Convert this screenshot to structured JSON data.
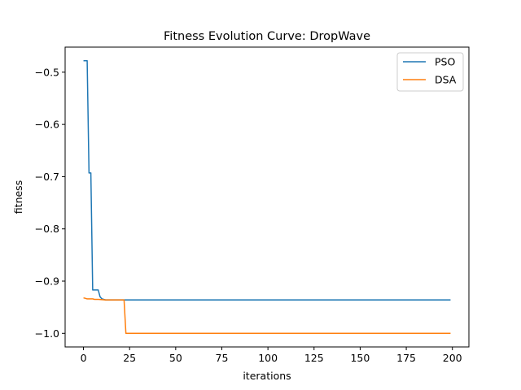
{
  "chart_data": {
    "type": "line",
    "title": "Fitness Evolution Curve: DropWave",
    "xlabel": "iterations",
    "ylabel": "fitness",
    "xlim": [
      -9.95,
      208.95
    ],
    "ylim": [
      -1.026,
      -0.452
    ],
    "xticks": [
      0,
      25,
      50,
      75,
      100,
      125,
      150,
      175,
      200
    ],
    "xtick_labels": [
      "0",
      "25",
      "50",
      "75",
      "100",
      "125",
      "150",
      "175",
      "200"
    ],
    "yticks": [
      -1.0,
      -0.9,
      -0.8,
      -0.7,
      -0.6,
      -0.5
    ],
    "ytick_labels": [
      "−1.0",
      "−0.9",
      "−0.8",
      "−0.7",
      "−0.6",
      "−0.5"
    ],
    "grid": false,
    "legend": "top-right",
    "series": [
      {
        "name": "PSO",
        "color": "#1f77b4",
        "x": [
          0,
          2,
          3,
          4,
          5,
          6,
          8,
          9,
          10,
          12,
          20,
          199
        ],
        "y": [
          -0.478,
          -0.478,
          -0.693,
          -0.693,
          -0.917,
          -0.917,
          -0.917,
          -0.93,
          -0.934,
          -0.936,
          -0.936,
          -0.936
        ]
      },
      {
        "name": "DSA",
        "color": "#ff7f0e",
        "x": [
          0,
          2,
          5,
          6,
          8,
          12,
          22,
          23,
          24,
          199
        ],
        "y": [
          -0.932,
          -0.934,
          -0.934,
          -0.935,
          -0.935,
          -0.936,
          -0.936,
          -1.0,
          -1.0,
          -1.0
        ]
      }
    ]
  }
}
